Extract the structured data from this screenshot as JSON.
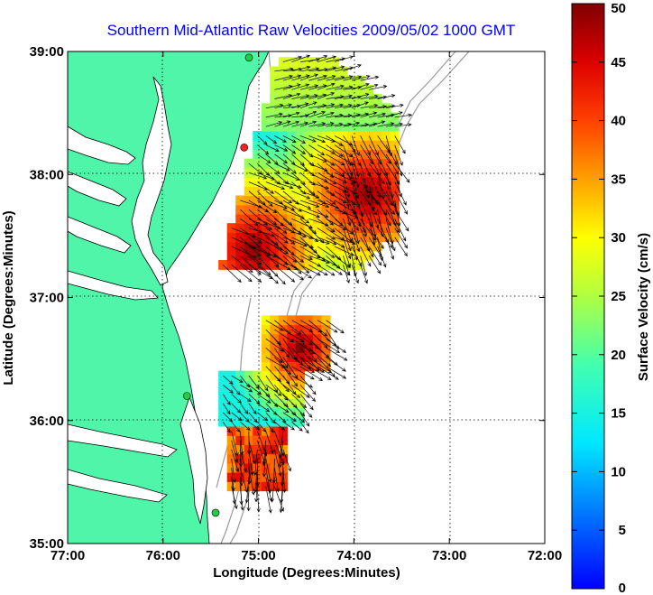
{
  "chart_data": {
    "type": "map-vector",
    "title": "Southern Mid-Atlantic Raw Velocities 2009/05/02 1000 GMT",
    "xlabel": "Longitude (Degrees:Minutes)",
    "ylabel": "Latitude (Degrees:Minutes)",
    "x_ticks": [
      "77:00",
      "76:00",
      "75:00",
      "74:00",
      "73:00",
      "72:00"
    ],
    "x_tick_values": [
      -77,
      -76,
      -75,
      -74,
      -73,
      -72
    ],
    "y_ticks": [
      "39:00",
      "38:00",
      "37:00",
      "36:00",
      "35:00"
    ],
    "y_tick_values": [
      39,
      38,
      37,
      36,
      35
    ],
    "xlim": [
      -77,
      -72
    ],
    "ylim": [
      35,
      39
    ],
    "grid": true,
    "colorbar": {
      "label": "Surface Velocity (cm/s)",
      "ticks": [
        "0",
        "5",
        "10",
        "15",
        "20",
        "25",
        "30",
        "35",
        "40",
        "45",
        "50"
      ],
      "range": [
        0,
        50
      ]
    },
    "regions": [
      {
        "region": "north",
        "lon": [
          -75.5,
          -73.5
        ],
        "lat": [
          37.2,
          38.9
        ],
        "speed_range": [
          15,
          50
        ]
      },
      {
        "region": "south",
        "lon": [
          -75.5,
          -74.3
        ],
        "lat": [
          35.4,
          36.9
        ],
        "speed_range": [
          15,
          50
        ]
      }
    ],
    "stations": [
      {
        "lon": -75.1,
        "lat": 38.95
      },
      {
        "lon": -75.15,
        "lat": 38.22
      },
      {
        "lon": -75.75,
        "lat": 36.2
      },
      {
        "lon": -75.45,
        "lat": 35.25
      }
    ]
  },
  "colors": {
    "land": "#4ff5a8",
    "coast": "#000000",
    "bathymetry": "#999999",
    "station": "#22cc44"
  }
}
